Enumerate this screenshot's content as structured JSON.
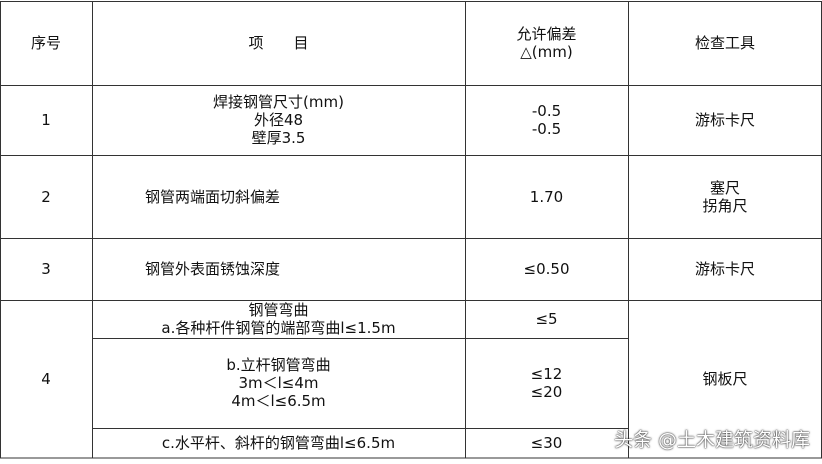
{
  "header": {
    "index": "序号",
    "item": "项　　目",
    "tolerance": [
      "允许偏差",
      "△(mm)"
    ],
    "tool": "检查工具"
  },
  "rows": [
    {
      "index": "1",
      "item": [
        "焊接钢管尺寸(mm)",
        "外径48",
        "壁厚3.5"
      ],
      "tolerance": [
        "-0.5",
        "-0.5"
      ],
      "tool": [
        "游标卡尺"
      ]
    },
    {
      "index": "2",
      "item": [
        "钢管两端面切斜偏差"
      ],
      "tolerance": [
        "1.70"
      ],
      "tool": [
        "塞尺",
        "拐角尺"
      ]
    },
    {
      "index": "3",
      "item": [
        "钢管外表面锈蚀深度"
      ],
      "tolerance": [
        "≤0.50"
      ],
      "tool": [
        "游标卡尺"
      ]
    },
    {
      "index": "4",
      "subrows": [
        {
          "item": [
            "钢管弯曲",
            "a.各种杆件钢管的端部弯曲l≤1.5m"
          ],
          "tolerance": [
            "≤5"
          ]
        },
        {
          "item": [
            "b.立杆钢管弯曲",
            "3m＜l≤4m",
            "4m＜l≤6.5m"
          ],
          "tolerance": [
            "≤12",
            "≤20"
          ]
        },
        {
          "item": [
            "c.水平杆、斜杆的钢管弯曲l≤6.5m"
          ],
          "tolerance": [
            "≤30"
          ]
        }
      ],
      "tool": [
        "钢板尺"
      ]
    }
  ],
  "watermark": "头条 @土木建筑资料库"
}
